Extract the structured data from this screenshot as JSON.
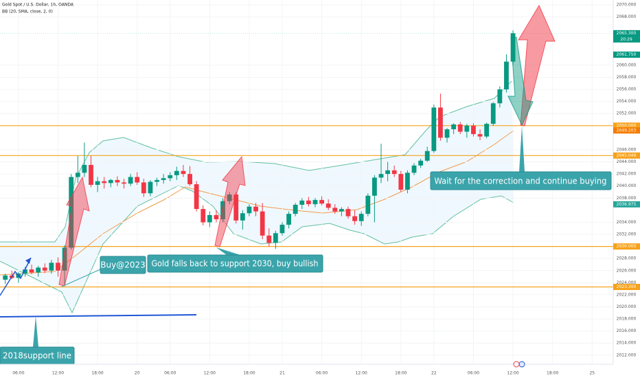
{
  "header": {
    "title": "Gold Spot / U.S. Dollar, 1h, OANDA",
    "indicator": "BB (20, SMA, close, 2, 0)"
  },
  "chart_data": {
    "type": "candlestick",
    "xlim": [
      -0.8,
      92.2
    ],
    "ylim": [
      2010.5,
      2070.8
    ],
    "xticks": [
      {
        "value": 2,
        "label": "06:00"
      },
      {
        "value": 8,
        "label": "12:00"
      },
      {
        "value": 14,
        "label": "18:00"
      },
      {
        "value": 20,
        "label": "20"
      },
      {
        "value": 25,
        "label": "06:00"
      },
      {
        "value": 31,
        "label": "12:00"
      },
      {
        "value": 37,
        "label": "18:00"
      },
      {
        "value": 42,
        "label": "21"
      },
      {
        "value": 48,
        "label": "06:00"
      },
      {
        "value": 54,
        "label": "12:00"
      },
      {
        "value": 60,
        "label": "18:00"
      },
      {
        "value": 65,
        "label": "22"
      },
      {
        "value": 71,
        "label": "06:00"
      },
      {
        "value": 77,
        "label": "12:00"
      },
      {
        "value": 83,
        "label": "18:00"
      },
      {
        "value": 89,
        "label": "25"
      }
    ],
    "yticks": [
      {
        "value": 2070,
        "label": "2070.000"
      },
      {
        "value": 2068,
        "label": "2068.000"
      },
      {
        "value": 2060,
        "label": "2060.000"
      },
      {
        "value": 2058,
        "label": "2058.000"
      },
      {
        "value": 2056,
        "label": "2056.000"
      },
      {
        "value": 2054,
        "label": "2054.000"
      },
      {
        "value": 2052,
        "label": "2052.000"
      },
      {
        "value": 2046,
        "label": "2046.000"
      },
      {
        "value": 2044,
        "label": "2044.000"
      },
      {
        "value": 2042,
        "label": "2042.000"
      },
      {
        "value": 2040,
        "label": "2040.000"
      },
      {
        "value": 2038,
        "label": "2038.000"
      },
      {
        "value": 2034,
        "label": "2034.000"
      },
      {
        "value": 2032,
        "label": "2032.000"
      },
      {
        "value": 2028,
        "label": "2028.000"
      },
      {
        "value": 2026,
        "label": "2026.000"
      },
      {
        "value": 2024,
        "label": "2024.000"
      },
      {
        "value": 2022,
        "label": "2022.000"
      },
      {
        "value": 2020,
        "label": "2020.000"
      },
      {
        "value": 2018,
        "label": "2018.000"
      },
      {
        "value": 2016,
        "label": "2016.000"
      },
      {
        "value": 2014,
        "label": "2014.000"
      },
      {
        "value": 2012,
        "label": "2012.000"
      }
    ],
    "up_color": "#089981",
    "down_color": "#f23645",
    "open": [
      2024.5,
      2025.2,
      2024.8,
      2025.5,
      2026.2,
      2025.7,
      2026.5,
      2026,
      2027.3,
      2026,
      2029.8,
      2041.5,
      2042.2,
      2043.5,
      2040.2,
      2040.8,
      2040.5,
      2041,
      2040.6,
      2040.4,
      2041.5,
      2040.6,
      2038.8,
      2040.7,
      2041,
      2041.3,
      2041.8,
      2042.5,
      2042,
      2040.3,
      2036.2,
      2034,
      2035.2,
      2034.5,
      2037.5,
      2038.6,
      2034.3,
      2035.5,
      2036.6,
      2035.8,
      2031.8,
      2030.6,
      2032.2,
      2033.6,
      2035.4,
      2036.9,
      2037.6,
      2037,
      2037.7,
      2037.1,
      2036.4,
      2035.8,
      2036.2,
      2035,
      2034.2,
      2035.4,
      2038.4,
      2041.4,
      2042,
      2042.6,
      2042,
      2039.4,
      2042.2,
      2043.4,
      2044.2,
      2045.8,
      2053,
      2048,
      2049.4,
      2050.2,
      2049,
      2050,
      2048.6,
      2048.2,
      2050.3,
      2053.7,
      2056,
      2060.6
    ],
    "high": [
      2025.5,
      2026,
      2025.8,
      2026.6,
      2027,
      2026.8,
      2027.2,
      2027.8,
      2028.2,
      2030.2,
      2042,
      2045,
      2047.2,
      2045,
      2041.5,
      2041.5,
      2041.2,
      2041.6,
      2041.2,
      2042,
      2042.3,
      2041.2,
      2041,
      2041.4,
      2042,
      2042.3,
      2043.2,
      2043.5,
      2043.3,
      2040.8,
      2036.8,
      2035.8,
      2036,
      2038,
      2039,
      2039,
      2036,
      2037,
      2037.2,
      2037.2,
      2033,
      2032.6,
      2034,
      2035.8,
      2037.2,
      2038,
      2038.2,
      2038,
      2038.3,
      2037.8,
      2037,
      2036.5,
      2036.6,
      2036,
      2035.8,
      2038.8,
      2041.8,
      2047,
      2044,
      2043.4,
      2042.5,
      2042.6,
      2043.8,
      2044.5,
      2046.5,
      2053.5,
      2055.3,
      2049.6,
      2050.4,
      2050.6,
      2050.3,
      2050.4,
      2049.4,
      2050.5,
      2053.9,
      2056.5,
      2061.8,
      2065.8
    ],
    "low": [
      2023.8,
      2024.6,
      2024,
      2025,
      2025.4,
      2025,
      2025.6,
      2025.5,
      2025,
      2023.5,
      2029.5,
      2040.5,
      2041.5,
      2039.8,
      2039,
      2039.6,
      2039.8,
      2040,
      2039.6,
      2040,
      2040.2,
      2038.2,
      2038.3,
      2040,
      2040.4,
      2040.8,
      2041,
      2041.5,
      2040,
      2035.8,
      2033.5,
      2033.2,
      2034,
      2034,
      2037,
      2033.8,
      2032.8,
      2035,
      2035,
      2031.2,
      2030,
      2029.6,
      2031.8,
      2033,
      2035,
      2036.2,
      2036.6,
      2036.5,
      2036.8,
      2036,
      2035.4,
      2035,
      2034.6,
      2033.6,
      2033.4,
      2035,
      2034,
      2040.5,
      2040.8,
      2041.5,
      2039,
      2038.8,
      2041.8,
      2043,
      2044,
      2045.5,
      2047.5,
      2047.2,
      2048.6,
      2048.6,
      2048,
      2048.2,
      2047.6,
      2047.9,
      2050,
      2053,
      2055.5,
      2060
    ],
    "close": [
      2025.2,
      2024.8,
      2025.5,
      2026.2,
      2025.7,
      2026.5,
      2026,
      2027.3,
      2026,
      2029.8,
      2041.5,
      2042.2,
      2043.5,
      2040.2,
      2040.8,
      2040.5,
      2041,
      2040.6,
      2040.4,
      2041.5,
      2040.6,
      2038.8,
      2040.7,
      2041,
      2041.3,
      2041.8,
      2042.5,
      2042,
      2040.3,
      2036.2,
      2034,
      2035.2,
      2034.5,
      2037.5,
      2038.6,
      2034.3,
      2035.5,
      2036.6,
      2035.8,
      2031.8,
      2030.6,
      2032.2,
      2033.6,
      2035.4,
      2036.9,
      2037.6,
      2037,
      2037.7,
      2037.1,
      2036.4,
      2035.8,
      2036.2,
      2035,
      2034.2,
      2035.4,
      2038.4,
      2041.4,
      2042,
      2042.6,
      2042,
      2039.4,
      2042.2,
      2043.4,
      2044.2,
      2045.8,
      2053,
      2048,
      2049.4,
      2050.2,
      2049,
      2050,
      2048.6,
      2048.2,
      2050.3,
      2053.7,
      2056,
      2060.6,
      2065.3
    ],
    "price_lines": [
      {
        "value": 2050,
        "label": "2050.000",
        "color": "#f7a21b"
      },
      {
        "value": 2045.049,
        "label": "2045.049",
        "color": "#f7a21b"
      },
      {
        "value": 2030,
        "label": "2030.000",
        "color": "#f7a21b"
      },
      {
        "value": 2023.3,
        "label": "2023.300",
        "color": "#f7a21b"
      }
    ],
    "price_labels": [
      {
        "value": 2065.3,
        "label": "2065.300",
        "color": "#089981"
      },
      {
        "value": 2061.75,
        "label": "2061.750",
        "color": "#089981"
      },
      {
        "value": 2049.203,
        "label": "2049.203",
        "color": "#f57c00"
      },
      {
        "value": 2036.975,
        "label": "2036.975",
        "color": "#26a69a"
      }
    ],
    "countdown": "20:29",
    "annotations": [
      {
        "text": "Buy@2023"
      },
      {
        "text": "Gold falls back to support 2030, buy bullish"
      },
      {
        "text": "Wait for the correction and continue buying"
      },
      {
        "text": "2018support line"
      }
    ]
  }
}
